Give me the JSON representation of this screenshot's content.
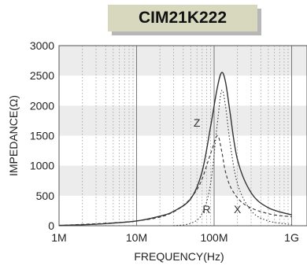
{
  "chart_data": {
    "type": "line",
    "title": "CIM21K222",
    "xlabel": "FREQUENCY(Hz)",
    "ylabel": "IMPEDANCE(Ω)",
    "x_scale": "log",
    "xlim": [
      1000000,
      1000000000
    ],
    "ylim": [
      0,
      3000
    ],
    "xticks": [
      {
        "label": "1M",
        "value": 1000000
      },
      {
        "label": "10M",
        "value": 10000000
      },
      {
        "label": "100M",
        "value": 100000000
      },
      {
        "label": "1G",
        "value": 1000000000
      }
    ],
    "yticks": [
      0,
      500,
      1000,
      1500,
      2000,
      2500,
      3000
    ],
    "series": [
      {
        "name": "Z",
        "style": "solid",
        "points": [
          [
            1000000,
            5
          ],
          [
            3000000,
            25
          ],
          [
            10000000,
            80
          ],
          [
            20000000,
            160
          ],
          [
            30000000,
            240
          ],
          [
            50000000,
            450
          ],
          [
            70000000,
            900
          ],
          [
            90000000,
            1650
          ],
          [
            110000000,
            2300
          ],
          [
            125000000,
            2550
          ],
          [
            140000000,
            2400
          ],
          [
            160000000,
            1900
          ],
          [
            200000000,
            1100
          ],
          [
            300000000,
            550
          ],
          [
            500000000,
            300
          ],
          [
            1000000000,
            180
          ]
        ]
      },
      {
        "name": "R",
        "style": "dotted",
        "points": [
          [
            30000000,
            0
          ],
          [
            50000000,
            40
          ],
          [
            70000000,
            200
          ],
          [
            90000000,
            700
          ],
          [
            110000000,
            1700
          ],
          [
            125000000,
            2250
          ],
          [
            140000000,
            2000
          ],
          [
            160000000,
            1400
          ],
          [
            200000000,
            700
          ],
          [
            300000000,
            250
          ],
          [
            500000000,
            80
          ],
          [
            1000000000,
            20
          ]
        ]
      },
      {
        "name": "X",
        "style": "dashed",
        "points": [
          [
            1000000,
            5
          ],
          [
            10000000,
            80
          ],
          [
            30000000,
            230
          ],
          [
            60000000,
            600
          ],
          [
            90000000,
            1200
          ],
          [
            110000000,
            1500
          ],
          [
            125000000,
            1250
          ],
          [
            140000000,
            900
          ],
          [
            170000000,
            600
          ],
          [
            250000000,
            350
          ],
          [
            500000000,
            200
          ],
          [
            1000000000,
            150
          ]
        ]
      }
    ],
    "annotations": [
      {
        "text": "Z",
        "x": 60000000,
        "y": 1650
      },
      {
        "text": "R",
        "x": 80000000,
        "y": 210
      },
      {
        "text": "X",
        "x": 200000000,
        "y": 210
      }
    ],
    "grid": true
  }
}
